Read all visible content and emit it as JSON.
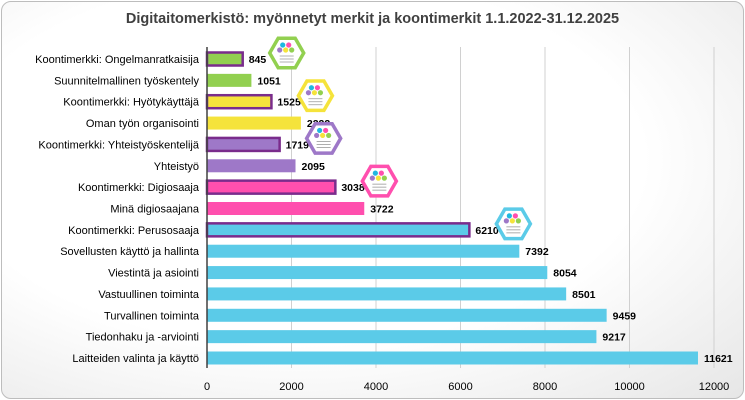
{
  "chart_data": {
    "type": "bar",
    "orientation": "horizontal",
    "title": "Digitaitomerkistö: myönnetyt merkit ja koontimerkit 1.1.2022-31.12.2025",
    "xlabel": "",
    "ylabel": "",
    "xlim": [
      0,
      12000
    ],
    "xticks": [
      0,
      2000,
      4000,
      6000,
      8000,
      10000,
      12000
    ],
    "grid": "vertical",
    "legend": "none",
    "categories": [
      "Koontimerkki: Ongelmanratkaisija",
      "Suunnitelmallinen työskentely",
      "Koontimerkki: Hyötykäyttäjä",
      "Oman työn organisointi",
      "Koontimerkki: Yhteistyöskentelijä",
      "Yhteistyö",
      "Koontimerkki: Digiosaaja",
      "Minä digiosaajana",
      "Koontimerkki: Perusosaaja",
      "Sovellusten käyttö ja hallinta",
      "Viestintä ja asiointi",
      "Vastuullinen toiminta",
      "Turvallinen toiminta",
      "Tiedonhaku ja -arviointi",
      "Laitteiden valinta ja käyttö"
    ],
    "values": [
      845,
      1051,
      1525,
      2222,
      1719,
      2095,
      3038,
      3722,
      6210,
      7392,
      8054,
      8501,
      9459,
      9217,
      11621
    ],
    "bar_colors": [
      "#92d050",
      "#92d050",
      "#f5e33b",
      "#f5e33b",
      "#9e78c8",
      "#9e78c8",
      "#ff4fae",
      "#ff4fae",
      "#5bcbe8",
      "#5bcbe8",
      "#5bcbe8",
      "#5bcbe8",
      "#5bcbe8",
      "#5bcbe8",
      "#5bcbe8"
    ],
    "outlined": [
      true,
      false,
      true,
      false,
      true,
      false,
      true,
      false,
      true,
      false,
      false,
      false,
      false,
      false,
      false
    ],
    "outline_color": "#7a2c8c",
    "badge_icons": [
      "green-hexagon-badge-icon",
      "yellow-hexagon-badge-icon",
      "purple-hexagon-badge-icon",
      "pink-hexagon-badge-icon",
      "cyan-hexagon-badge-icon"
    ]
  }
}
